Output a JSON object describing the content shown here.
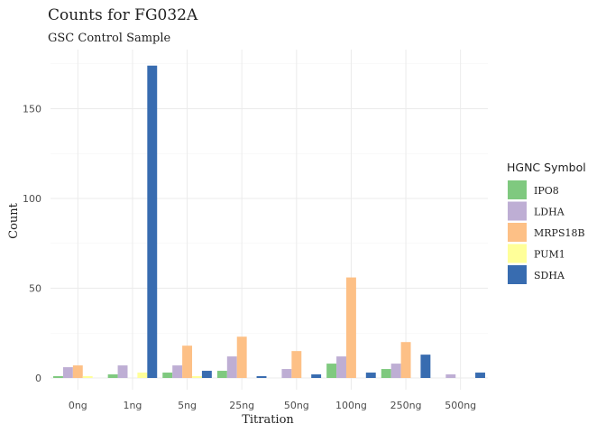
{
  "chart_data": {
    "type": "bar",
    "title": "Counts for FG032A",
    "subtitle": "GSC Control Sample",
    "xlabel": "Titration",
    "ylabel": "Count",
    "ylim": [
      0,
      175
    ],
    "yticks": [
      0,
      50,
      100,
      150
    ],
    "grid": true,
    "legend_position": "right",
    "legend_title": "HGNC Symbol",
    "categories": [
      "0ng",
      "1ng",
      "5ng",
      "25ng",
      "50ng",
      "100ng",
      "250ng",
      "500ng"
    ],
    "series": [
      {
        "name": "IPO8",
        "color": "#7fc97f",
        "values": [
          1,
          2,
          3,
          4,
          0,
          8,
          5,
          0
        ]
      },
      {
        "name": "LDHA",
        "color": "#beaed4",
        "values": [
          6,
          7,
          7,
          12,
          5,
          12,
          8,
          2
        ]
      },
      {
        "name": "MRPS18B",
        "color": "#fdc086",
        "values": [
          7,
          0,
          18,
          23,
          15,
          56,
          20,
          0
        ]
      },
      {
        "name": "PUM1",
        "color": "#ffff99",
        "values": [
          1,
          3,
          1,
          0,
          0,
          0,
          0,
          0
        ]
      },
      {
        "name": "SDHA",
        "color": "#386cb0",
        "values": [
          0,
          174,
          4,
          1,
          2,
          3,
          13,
          3
        ]
      }
    ]
  }
}
